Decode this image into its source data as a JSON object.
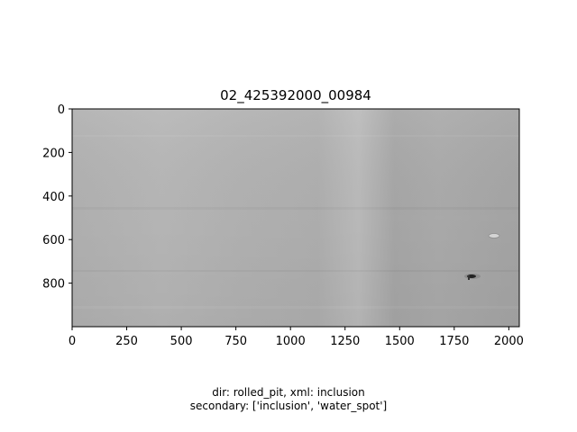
{
  "figure": {
    "title": "02_425392000_00984",
    "caption_line1": "dir: rolled_pit, xml: inclusion",
    "caption_line2": "secondary: ['inclusion', 'water_spot']"
  },
  "image": {
    "description_type": "grayscale steel surface scan",
    "x_range": [
      0,
      2048
    ],
    "y_range": [
      1000,
      0
    ],
    "x_ticks": [
      "0",
      "250",
      "500",
      "750",
      "1000",
      "1250",
      "1500",
      "1750",
      "2000"
    ],
    "y_ticks": [
      "0",
      "200",
      "400",
      "600",
      "800"
    ],
    "defects": [
      {
        "label": "inclusion",
        "x": 1835,
        "y": 770
      },
      {
        "label": "water_spot",
        "x": 1940,
        "y": 585
      }
    ]
  }
}
